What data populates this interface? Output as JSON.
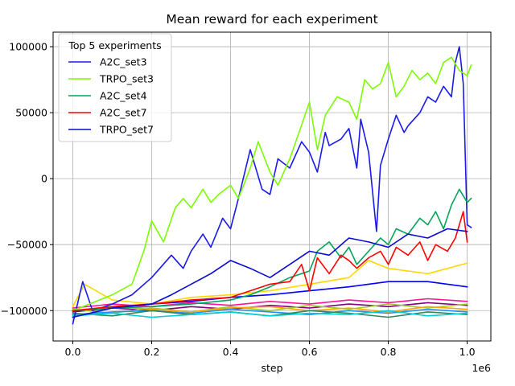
{
  "chart_data": {
    "type": "line",
    "title": "Mean reward for each experiment",
    "xlabel": "step",
    "ylabel": "",
    "x_offset_label": "1e6",
    "xlim": [
      -0.05,
      1.06
    ],
    "ylim": [
      -123000,
      111000
    ],
    "x_ticks": [
      0.0,
      0.2,
      0.4,
      0.6,
      0.8,
      1.0
    ],
    "x_tick_labels": [
      "0.0",
      "0.2",
      "0.4",
      "0.6",
      "0.8",
      "1.0"
    ],
    "y_ticks": [
      -100000,
      -50000,
      0,
      50000,
      100000
    ],
    "y_tick_labels": [
      "−100000",
      "−50000",
      "0",
      "50000",
      "100000"
    ],
    "grid": true,
    "legend": {
      "title": "Top 5 experiments",
      "placement": "upper-left",
      "entries": [
        "A2C_set3",
        "TRPO_set3",
        "A2C_set4",
        "A2C_set7",
        "TRPO_set7"
      ]
    },
    "series": [
      {
        "color": "#800080",
        "x": [
          0.0,
          0.1,
          0.2,
          0.3,
          0.4,
          0.5,
          0.6,
          0.7,
          0.8,
          0.9,
          1.0
        ],
        "y": [
          -101000,
          -98000,
          -100000,
          -97000,
          -99000,
          -96000,
          -98000,
          -95000,
          -97000,
          -94000,
          -96000
        ]
      },
      {
        "color": "#9acd32",
        "x": [
          0.0,
          0.1,
          0.2,
          0.3,
          0.4,
          0.5,
          0.6,
          0.7,
          0.8,
          0.9,
          1.0
        ],
        "y": [
          -99000,
          -102000,
          -98000,
          -101000,
          -97000,
          -100000,
          -96000,
          -99000,
          -95000,
          -98000,
          -95000
        ]
      },
      {
        "color": "#1e90ff",
        "x": [
          0.0,
          0.1,
          0.2,
          0.3,
          0.4,
          0.5,
          0.6,
          0.7,
          0.8,
          0.9,
          1.0
        ],
        "y": [
          -103000,
          -101000,
          -100000,
          -102000,
          -99000,
          -101000,
          -103000,
          -100000,
          -102000,
          -99000,
          -101000
        ]
      },
      {
        "color": "#ffa500",
        "x": [
          0.0,
          0.1,
          0.2,
          0.3,
          0.4,
          0.5,
          0.6,
          0.7,
          0.8,
          0.9,
          1.0
        ],
        "y": [
          -100000,
          -97000,
          -99000,
          -101000,
          -98000,
          -97000,
          -100000,
          -98000,
          -101000,
          -97000,
          -99000
        ]
      },
      {
        "color": "#2e8b57",
        "x": [
          0.0,
          0.1,
          0.2,
          0.3,
          0.4,
          0.5,
          0.6,
          0.7,
          0.8,
          0.9,
          1.0
        ],
        "y": [
          -102000,
          -104000,
          -100000,
          -103000,
          -101000,
          -104000,
          -100000,
          -102000,
          -105000,
          -101000,
          -103000
        ]
      },
      {
        "color": "#00ced1",
        "x": [
          0.0,
          0.1,
          0.2,
          0.3,
          0.4,
          0.5,
          0.6,
          0.7,
          0.8,
          0.9,
          1.0
        ],
        "y": [
          -104000,
          -102000,
          -105000,
          -103000,
          -101000,
          -104000,
          -102000,
          -103000,
          -100000,
          -104000,
          -102000
        ]
      },
      {
        "color": "#ff1493",
        "x": [
          0.0,
          0.1,
          0.2,
          0.3,
          0.4,
          0.5,
          0.6,
          0.7,
          0.8,
          0.9,
          1.0
        ],
        "y": [
          -98000,
          -95000,
          -97000,
          -94000,
          -96000,
          -93000,
          -95000,
          -92000,
          -94000,
          -91000,
          -93000
        ]
      },
      {
        "color": "#ffd700",
        "x": [
          0.0,
          0.03,
          0.1,
          0.2,
          0.3,
          0.4,
          0.5,
          0.6,
          0.7,
          0.75,
          0.8,
          0.9,
          1.0
        ],
        "y": [
          -97000,
          -80000,
          -92000,
          -95000,
          -90000,
          -88000,
          -85000,
          -80000,
          -75000,
          -62000,
          -68000,
          -72000,
          -64000
        ]
      },
      {
        "color": "#0000ff",
        "x": [
          0.0,
          0.1,
          0.2,
          0.3,
          0.4,
          0.5,
          0.6,
          0.7,
          0.8,
          0.9,
          1.0
        ],
        "y": [
          -100000,
          -98000,
          -95000,
          -93000,
          -90000,
          -88000,
          -85000,
          -82000,
          -78000,
          -78000,
          -82000
        ]
      },
      {
        "name": "A2C_set3",
        "color": "#1a1aeb",
        "x": [
          0.0,
          0.025,
          0.05,
          0.1,
          0.15,
          0.2,
          0.25,
          0.28,
          0.3,
          0.33,
          0.35,
          0.38,
          0.4,
          0.42,
          0.45,
          0.48,
          0.5,
          0.52,
          0.55,
          0.58,
          0.6,
          0.62,
          0.64,
          0.65,
          0.68,
          0.7,
          0.72,
          0.73,
          0.75,
          0.77,
          0.78,
          0.8,
          0.82,
          0.84,
          0.85,
          0.88,
          0.9,
          0.92,
          0.94,
          0.96,
          0.97,
          0.98,
          0.99,
          1.0,
          1.01
        ],
        "y": [
          -110000,
          -78000,
          -100000,
          -95000,
          -88000,
          -75000,
          -58000,
          -68000,
          -55000,
          -42000,
          -52000,
          -30000,
          -38000,
          -15000,
          22000,
          -8000,
          -12000,
          15000,
          8000,
          28000,
          20000,
          5000,
          35000,
          25000,
          30000,
          38000,
          8000,
          45000,
          20000,
          -40000,
          10000,
          30000,
          48000,
          35000,
          40000,
          50000,
          62000,
          58000,
          70000,
          62000,
          88000,
          100000,
          72000,
          -35000,
          -37000
        ]
      },
      {
        "name": "TRPO_set3",
        "color": "#7cfc00",
        "x": [
          0.0,
          0.1,
          0.15,
          0.18,
          0.2,
          0.23,
          0.26,
          0.28,
          0.3,
          0.33,
          0.35,
          0.37,
          0.4,
          0.42,
          0.45,
          0.47,
          0.5,
          0.52,
          0.55,
          0.57,
          0.6,
          0.62,
          0.64,
          0.67,
          0.7,
          0.72,
          0.74,
          0.76,
          0.78,
          0.8,
          0.82,
          0.84,
          0.86,
          0.88,
          0.9,
          0.92,
          0.94,
          0.96,
          0.98,
          1.0,
          1.01
        ],
        "y": [
          -100000,
          -88000,
          -80000,
          -55000,
          -32000,
          -48000,
          -22000,
          -15000,
          -22000,
          -8000,
          -18000,
          -12000,
          -5000,
          -15000,
          8000,
          28000,
          5000,
          -5000,
          15000,
          32000,
          58000,
          22000,
          48000,
          62000,
          58000,
          45000,
          75000,
          68000,
          72000,
          88000,
          62000,
          70000,
          82000,
          75000,
          80000,
          72000,
          88000,
          92000,
          82000,
          78000,
          86000
        ]
      },
      {
        "name": "A2C_set4",
        "color": "#00a65a",
        "x": [
          0.0,
          0.1,
          0.2,
          0.3,
          0.4,
          0.45,
          0.5,
          0.55,
          0.6,
          0.62,
          0.65,
          0.68,
          0.7,
          0.72,
          0.75,
          0.78,
          0.8,
          0.82,
          0.85,
          0.88,
          0.9,
          0.92,
          0.94,
          0.96,
          0.98,
          1.0,
          1.01
        ],
        "y": [
          -100000,
          -98000,
          -97000,
          -95000,
          -92000,
          -88000,
          -82000,
          -75000,
          -70000,
          -55000,
          -48000,
          -60000,
          -52000,
          -65000,
          -55000,
          -45000,
          -50000,
          -38000,
          -42000,
          -30000,
          -35000,
          -25000,
          -38000,
          -20000,
          -8000,
          -18000,
          -15000
        ]
      },
      {
        "name": "A2C_set7",
        "color": "#ff0000",
        "x": [
          0.0,
          0.1,
          0.2,
          0.3,
          0.4,
          0.45,
          0.5,
          0.55,
          0.58,
          0.6,
          0.62,
          0.65,
          0.68,
          0.7,
          0.72,
          0.75,
          0.78,
          0.8,
          0.82,
          0.85,
          0.88,
          0.9,
          0.92,
          0.95,
          0.97,
          0.99,
          1.0
        ],
        "y": [
          -100000,
          -97000,
          -95000,
          -92000,
          -90000,
          -85000,
          -80000,
          -78000,
          -65000,
          -85000,
          -60000,
          -72000,
          -58000,
          -62000,
          -68000,
          -60000,
          -55000,
          -65000,
          -52000,
          -58000,
          -48000,
          -62000,
          -50000,
          -55000,
          -45000,
          -25000,
          -48000
        ]
      },
      {
        "name": "TRPO_set7",
        "color": "#0a0ad2",
        "x": [
          0.0,
          0.1,
          0.2,
          0.25,
          0.3,
          0.35,
          0.4,
          0.45,
          0.5,
          0.55,
          0.6,
          0.65,
          0.7,
          0.75,
          0.8,
          0.85,
          0.9,
          0.95,
          1.0
        ],
        "y": [
          -105000,
          -98000,
          -95000,
          -88000,
          -80000,
          -72000,
          -62000,
          -68000,
          -75000,
          -65000,
          -55000,
          -58000,
          -45000,
          -48000,
          -52000,
          -42000,
          -45000,
          -38000,
          -40000
        ]
      }
    ]
  }
}
